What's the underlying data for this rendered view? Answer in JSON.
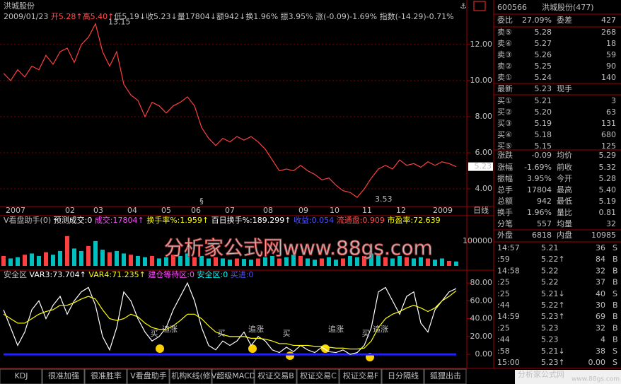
{
  "stock_title": "洪城股份",
  "info_line": [
    {
      "text": "2009/01/23",
      "color": "#c0c0c0"
    },
    {
      "text": " 开5.28↑",
      "color": "#ff5050"
    },
    {
      "text": "高5.40↑",
      "color": "#ff5050"
    },
    {
      "text": "低5.19↓",
      "color": "#c0c0c0"
    },
    {
      "text": "收5.23↓",
      "color": "#c0c0c0"
    },
    {
      "text": "量17804↓",
      "color": "#c0c0c0"
    },
    {
      "text": "额942↓",
      "color": "#c0c0c0"
    },
    {
      "text": "换1.96%",
      "color": "#c0c0c0"
    },
    {
      "text": " 振3.95%",
      "color": "#c0c0c0"
    },
    {
      "text": " 涨(-0.09)-1.69%",
      "color": "#c0c0c0"
    },
    {
      "text": " 指数(-14.29)-0.71%",
      "color": "#c0c0c0"
    }
  ],
  "x_labels": [
    "2007",
    "02",
    "03",
    "04",
    "05",
    "06",
    "07",
    "08",
    "09",
    "10",
    "11",
    "12",
    "2009"
  ],
  "period_label": "日线",
  "volume_header": [
    {
      "text": "V看盘助手(0) ",
      "color": "#c0c0c0"
    },
    {
      "text": "预测成交:0 ",
      "color": "#ffffff"
    },
    {
      "text": "成交:17804↑ ",
      "color": "#ff50ff"
    },
    {
      "text": "换手率%:1.959↑ ",
      "color": "#ffff00"
    },
    {
      "text": "百日换手%:189.299↑ ",
      "color": "#ffffff"
    },
    {
      "text": "收益:0.054 ",
      "color": "#5050ff"
    },
    {
      "text": "流通盘:0.909 ",
      "color": "#ff5050"
    },
    {
      "text": "市盈率:72.639",
      "color": "#ffff00"
    }
  ],
  "indicator_header": [
    {
      "text": "安全区 ",
      "color": "#c0c0c0"
    },
    {
      "text": "VAR3:73.704↑ ",
      "color": "#ffffff"
    },
    {
      "text": "VAR4:71.235↑ ",
      "color": "#ffff00"
    },
    {
      "text": "建仓等待区:0 ",
      "color": "#ff50ff"
    },
    {
      "text": "安全区:0 ",
      "color": "#00ffff"
    },
    {
      "text": "买进:0",
      "color": "#5050ff"
    }
  ],
  "watermark": "分析家公式网www.88gs.com",
  "chart_data": [
    {
      "type": "line",
      "color": "#ff4040",
      "values": [
        10.4,
        10.0,
        10.6,
        10.2,
        10.8,
        10.6,
        11.4,
        10.9,
        11.6,
        11.8,
        11.0,
        12.0,
        12.4,
        13.15,
        11.6,
        10.8,
        11.6,
        9.8,
        9.2,
        8.9,
        8.0,
        8.8,
        8.6,
        8.2,
        8.6,
        8.8,
        9.1,
        8.6,
        7.4,
        6.8,
        6.4,
        6.8,
        6.6,
        6.9,
        6.7,
        6.9,
        6.6,
        6.2,
        5.6,
        5.0,
        5.1,
        5.0,
        5.3,
        5.0,
        4.8,
        4.5,
        4.6,
        4.2,
        3.9,
        3.8,
        3.53,
        4.0,
        4.6,
        5.1,
        5.3,
        5.1,
        5.6,
        5.3,
        5.4,
        5.2,
        5.5,
        5.3,
        5.5,
        5.4,
        5.23
      ],
      "ylim": [
        3.1,
        13.76
      ],
      "yticks": [
        {
          "value": 4,
          "label": "4.00"
        },
        {
          "value": 6,
          "label": "6.00"
        },
        {
          "value": 8,
          "label": "8.00"
        },
        {
          "value": 10,
          "label": "10.00"
        },
        {
          "value": 12,
          "label": "12.00"
        }
      ],
      "grid": true,
      "annotations": [
        "13.15",
        "3.53",
        "§"
      ],
      "current_label": "5.23"
    },
    {
      "type": "bar",
      "color": "#ff4040",
      "values": [
        40000,
        30000,
        35000,
        45000,
        50000,
        40000,
        55000,
        45000,
        60000,
        120000,
        70000,
        60000,
        80000,
        100000,
        65000,
        55000,
        60000,
        50000,
        45000,
        40000,
        35000,
        40000,
        30000,
        35000,
        45000,
        40000,
        50000,
        35000,
        40000,
        30000,
        35000,
        30000,
        25000,
        30000,
        28000,
        25000,
        30000,
        35000,
        40000,
        30000,
        35000,
        45000,
        40000,
        30000,
        25000,
        30000,
        35000,
        25000,
        30000,
        40000,
        35000,
        40000,
        50000,
        45000,
        35000,
        30000,
        40000,
        35000,
        30000,
        35000,
        30000,
        25000,
        30000,
        20000,
        17804
      ],
      "ylim": [
        0,
        165000
      ],
      "yticks": [
        100000
      ]
    },
    {
      "type": "line",
      "series": [
        {
          "color": "#ffffff",
          "values": [
            50,
            30,
            10,
            25,
            50,
            60,
            40,
            55,
            65,
            45,
            60,
            70,
            75,
            55,
            20,
            5,
            30,
            70,
            60,
            40,
            25,
            15,
            20,
            30,
            50,
            65,
            80,
            60,
            30,
            10,
            5,
            15,
            10,
            15,
            25,
            10,
            20,
            15,
            5,
            2,
            8,
            3,
            10,
            5,
            2,
            8,
            3,
            2,
            5,
            0,
            2,
            10,
            30,
            70,
            75,
            60,
            45,
            65,
            70,
            35,
            25,
            50,
            60,
            70,
            73.704
          ]
        },
        {
          "color": "#ffff00",
          "values": [
            45,
            40,
            35,
            35,
            40,
            45,
            48,
            50,
            55,
            55,
            58,
            62,
            65,
            62,
            50,
            40,
            38,
            40,
            45,
            42,
            35,
            30,
            28,
            28,
            32,
            38,
            45,
            45,
            40,
            32,
            25,
            22,
            20,
            20,
            20,
            18,
            18,
            17,
            15,
            12,
            12,
            10,
            10,
            10,
            9,
            9,
            8,
            7,
            7,
            6,
            6,
            7,
            15,
            30,
            40,
            45,
            48,
            52,
            55,
            52,
            48,
            52,
            60,
            65,
            71.235
          ]
        }
      ],
      "ylim": [
        -15,
        92
      ],
      "yticks": [
        {
          "value": 0,
          "label": "0.00"
        },
        {
          "value": 20,
          "label": "20.00"
        },
        {
          "value": 40,
          "label": "40.00"
        },
        {
          "value": 60,
          "label": "60.00"
        },
        {
          "value": 80,
          "label": "80.00"
        }
      ],
      "annotations": [
        "买",
        "追涨",
        "买",
        "追涨",
        "买",
        "追涨",
        "买",
        "追涨"
      ]
    }
  ],
  "quote": {
    "code": "600566",
    "name": "洪城股份(477)",
    "rows": [
      [
        "委比",
        "27.09%",
        "委差",
        "427"
      ],
      [
        "卖⑤",
        "5.28",
        "268"
      ],
      [
        "卖④",
        "5.27",
        "18"
      ],
      [
        "卖③",
        "5.26",
        "59"
      ],
      [
        "卖②",
        "5.25",
        "90"
      ],
      [
        "卖①",
        "5.24",
        "140"
      ],
      [
        "最新",
        "5.23",
        "现手"
      ],
      [
        "买①",
        "5.21",
        "3"
      ],
      [
        "买②",
        "5.20",
        "63"
      ],
      [
        "买③",
        "5.19",
        "131"
      ],
      [
        "买④",
        "5.18",
        "680"
      ],
      [
        "买⑤",
        "5.15",
        "125"
      ],
      [
        "涨跌",
        "-0.09",
        "均价",
        "5.29"
      ],
      [
        "涨幅",
        "-1.69%",
        "前收",
        "5.32"
      ],
      [
        "振幅",
        "3.95%",
        "今开",
        "5.28"
      ],
      [
        "总手",
        "17804",
        "最高",
        "5.40"
      ],
      [
        "总额",
        "942",
        "最低",
        "5.19"
      ],
      [
        "换手",
        "1.96%",
        "量比",
        "0.81"
      ],
      [
        "分笔",
        "557",
        "均量",
        "32"
      ],
      [
        "外盘",
        "6818",
        "内盘",
        "10985"
      ]
    ],
    "ticks": [
      [
        "14:57",
        "5.21",
        "36",
        "S"
      ],
      [
        ":59",
        "5.22↑",
        "84",
        "B"
      ],
      [
        "14:58",
        "5.22",
        "32",
        "B"
      ],
      [
        ":25",
        "5.22",
        "37",
        "B"
      ],
      [
        ":25",
        "5.21↓",
        "40",
        "S"
      ],
      [
        ":44",
        "5.22↑",
        "30",
        "B"
      ],
      [
        "14:59",
        "5.23↑",
        "69",
        "B"
      ],
      [
        ":25",
        "5.23",
        "32",
        "B"
      ],
      [
        ":44",
        "5.23",
        "4",
        "B"
      ],
      [
        ":58",
        "5.21↓",
        "38",
        "S"
      ],
      [
        "15:00",
        "5.23↑",
        "0.00",
        "S"
      ]
    ]
  },
  "tabs": [
    "KDJ",
    "很准加强",
    "很准胜率",
    "V看盘助手",
    "机构K线(修",
    "V超级MACD",
    "权证交易B",
    "权证交易C",
    "权证交易F",
    "日分隔线",
    "狐狸出击"
  ],
  "corner_watermark": {
    "name": "分析家公式网",
    "url": "www.88gs.com"
  }
}
